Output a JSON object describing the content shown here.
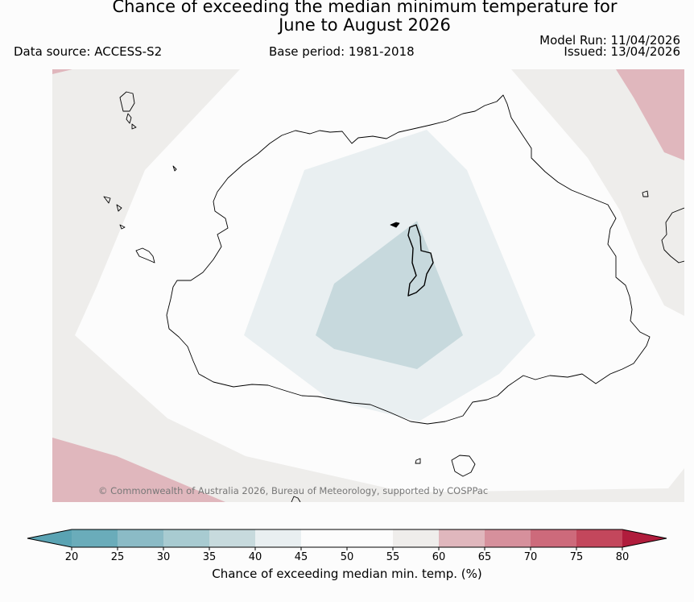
{
  "header": {
    "title_line1": "Chance of exceeding the median minimum temperature for",
    "title_line2": "June to August 2026",
    "data_source": "Data source: ACCESS-S2",
    "base_period": "Base period: 1981-2018",
    "model_run": "Model Run: 11/04/2026",
    "issued": "Issued: 13/04/2026"
  },
  "map": {
    "copyright": "© Commonwealth of Australia 2026, Bureau of Meteorology, supported by COSPPac",
    "colors": {
      "ocean": "#fcfcfc",
      "band_50_55": "#eeedeb",
      "band_60_65": "#e0b7bd",
      "band_40_45": "#e9eff1",
      "band_35_40": "#c7d9dd",
      "coast": "#000000"
    }
  },
  "colorbar": {
    "label": "Chance of exceeding median min. temp. (%)",
    "ticks": [
      "20",
      "25",
      "30",
      "35",
      "40",
      "45",
      "50",
      "55",
      "60",
      "65",
      "70",
      "75",
      "80"
    ],
    "under_color": "#5aa3b3",
    "over_color": "#b01c3c",
    "band_colors": [
      "#6aacba",
      "#8bbbc6",
      "#a8cbd1",
      "#c7dadd",
      "#e9eff1",
      "#fcfcfc",
      "#fcfcfc",
      "#efedeb",
      "#e0b7bd",
      "#d6909c",
      "#cd6a7b",
      "#c3475c"
    ]
  }
}
